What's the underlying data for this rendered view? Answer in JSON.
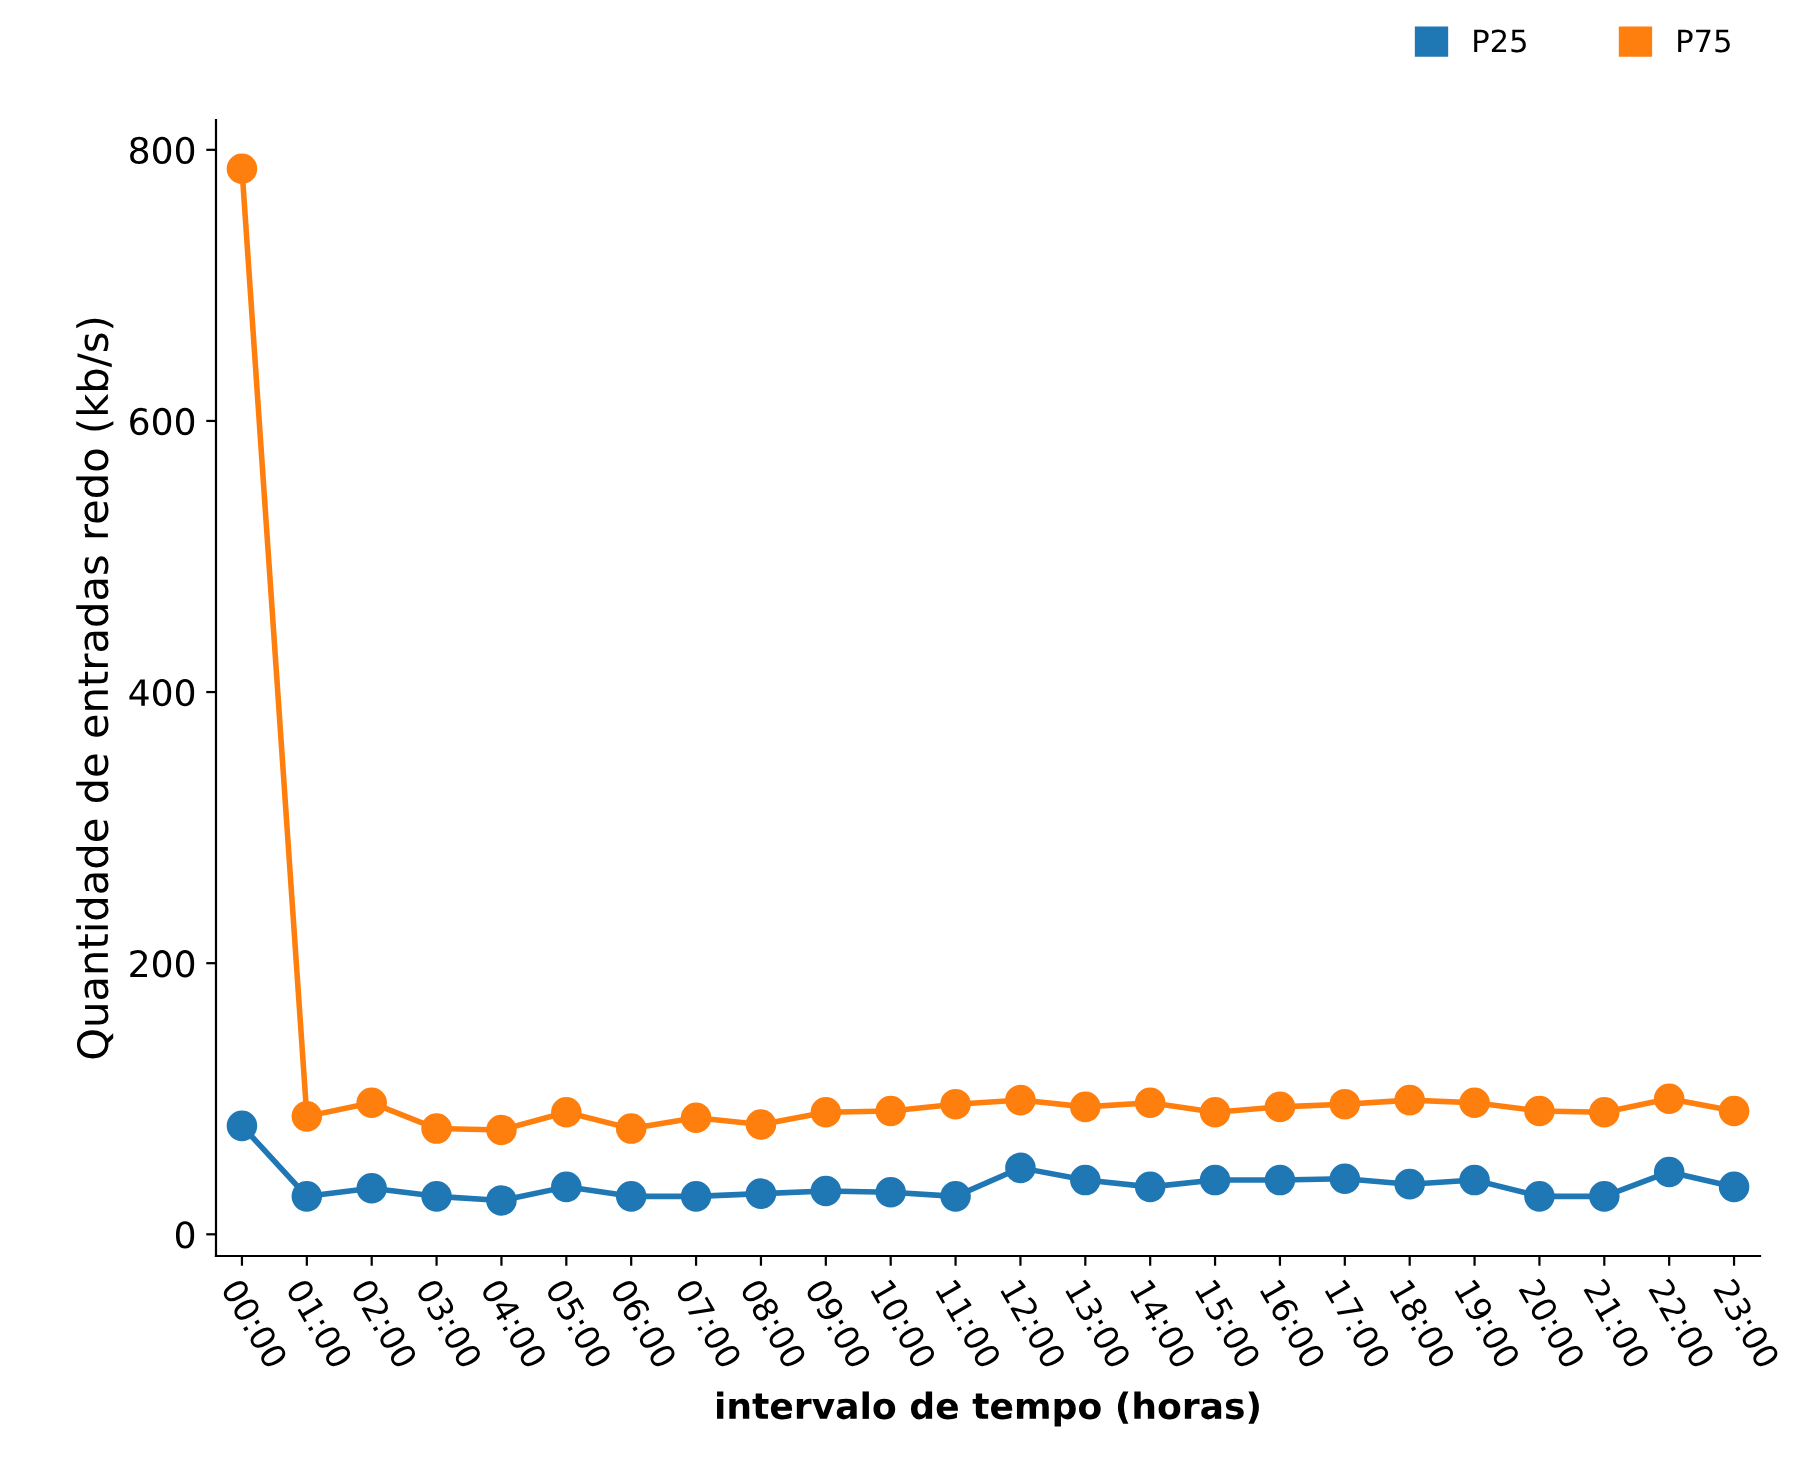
{
  "chart_data": {
    "type": "line",
    "xlabel": "intervalo de tempo (horas)",
    "ylabel": "Quantidade de entradas redo (kb/s)",
    "categories": [
      "00:00",
      "01:00",
      "02:00",
      "03:00",
      "04:00",
      "05:00",
      "06:00",
      "07:00",
      "08:00",
      "09:00",
      "10:00",
      "11:00",
      "12:00",
      "13:00",
      "14:00",
      "15:00",
      "16:00",
      "17:00",
      "18:00",
      "19:00",
      "20:00",
      "21:00",
      "22:00",
      "23:00"
    ],
    "series": [
      {
        "name": "P25",
        "color": "#1f77b4",
        "values": [
          80,
          28,
          34,
          28,
          25,
          35,
          28,
          28,
          30,
          32,
          31,
          28,
          49,
          40,
          35,
          40,
          40,
          41,
          37,
          40,
          28,
          28,
          46,
          35
        ]
      },
      {
        "name": "P75",
        "color": "#ff7f0e",
        "values": [
          786,
          87,
          97,
          78,
          77,
          90,
          78,
          86,
          81,
          90,
          91,
          96,
          99,
          94,
          97,
          90,
          94,
          96,
          99,
          97,
          91,
          90,
          100,
          91
        ]
      }
    ],
    "ylim": [
      -16,
      822
    ],
    "yticks": [
      0,
      200,
      400,
      600,
      800
    ],
    "grid": false,
    "legend": "top right",
    "marker": "circle",
    "line_style": "solid"
  }
}
